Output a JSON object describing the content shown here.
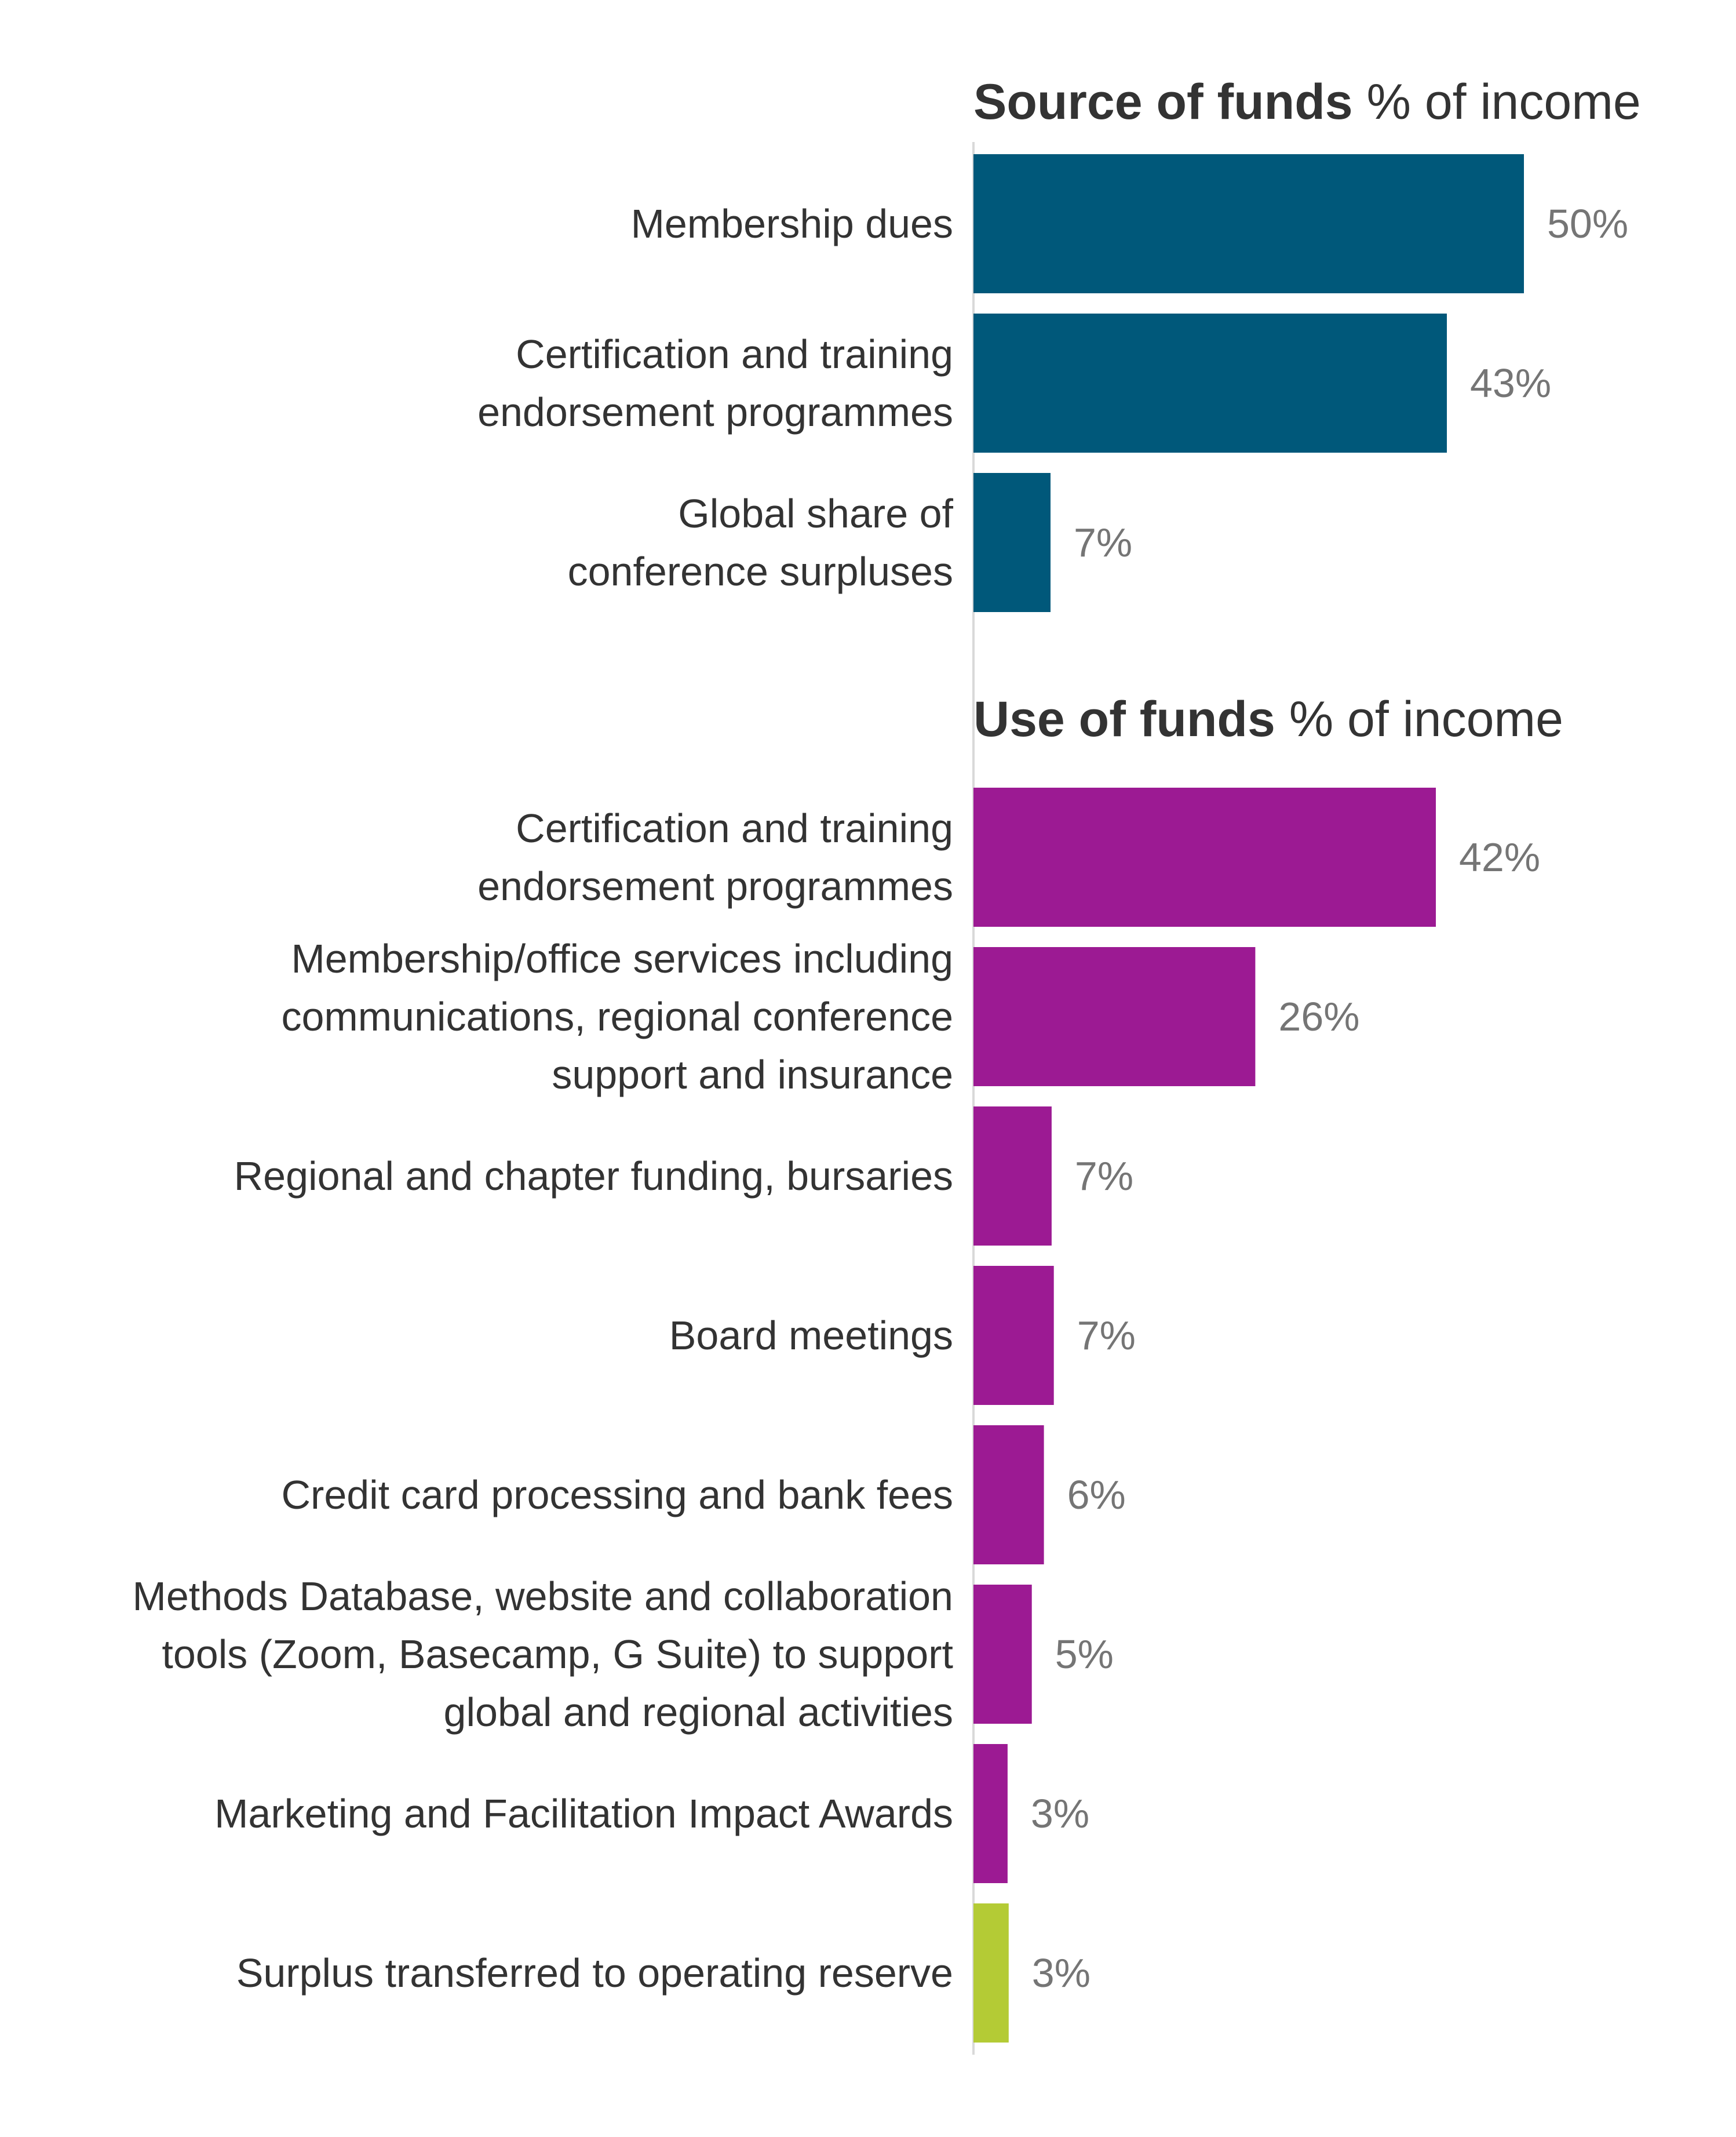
{
  "chart_data": [
    {
      "type": "bar",
      "orientation": "horizontal",
      "title_bold": "Source of funds",
      "title_regular": " % of income",
      "categories": [
        [
          "Membership dues"
        ],
        [
          "Certification and training",
          "endorsement programmes"
        ],
        [
          "Global share of",
          "conference surpluses"
        ]
      ],
      "values": [
        50,
        43,
        7
      ],
      "value_labels": [
        "50%",
        "43%",
        "7%"
      ],
      "colors": [
        "#00587a",
        "#00587a",
        "#00587a"
      ],
      "xlim": [
        0,
        50
      ]
    },
    {
      "type": "bar",
      "orientation": "horizontal",
      "title_bold": "Use of funds",
      "title_regular": " % of income",
      "categories": [
        [
          "Certification and training",
          "endorsement programmes"
        ],
        [
          "Membership/office services including",
          "communications, regional conference",
          "support and insurance"
        ],
        [
          "Regional and chapter funding, bursaries"
        ],
        [
          "Board meetings"
        ],
        [
          "Credit card processing and bank fees"
        ],
        [
          "Methods Database, website and collaboration",
          "tools (Zoom, Basecamp, G Suite) to support",
          "global and regional activities"
        ],
        [
          "Marketing and Facilitation Impact Awards"
        ],
        [
          "Surplus transferred to operating reserve"
        ]
      ],
      "values": [
        42,
        25.6,
        7.1,
        7.3,
        6.4,
        5.3,
        3.1,
        3.2
      ],
      "value_labels": [
        "42%",
        "26%",
        "7%",
        "7%",
        "6%",
        "5%",
        "3%",
        "3%"
      ],
      "colors": [
        "#9c1a93",
        "#9c1a93",
        "#9c1a93",
        "#9c1a93",
        "#9c1a93",
        "#9c1a93",
        "#9c1a93",
        "#b4cb35"
      ],
      "xlim": [
        0,
        50
      ]
    }
  ],
  "axis_line_color": "#d9d9d9"
}
